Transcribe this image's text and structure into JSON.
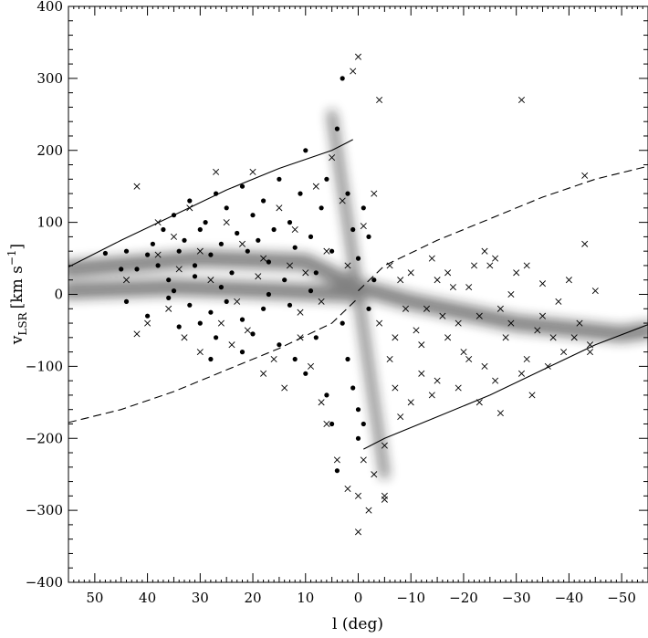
{
  "chart_data": {
    "type": "scatter",
    "title": "",
    "xlabel": "l (deg)",
    "ylabel": {
      "prefix": "v",
      "subscript": "LSR",
      "unit": "[km s",
      "sup": "−1",
      "close": "]"
    },
    "xlim": [
      55,
      -55
    ],
    "ylim": [
      -400,
      400
    ],
    "x_reversed": true,
    "grid": false,
    "legend": "none",
    "x_ticks": [
      50,
      40,
      30,
      20,
      10,
      0,
      -10,
      -20,
      -30,
      -40,
      -50
    ],
    "x_tick_labels": [
      "50",
      "40",
      "30",
      "20",
      "10",
      "0",
      "−10",
      "−20",
      "−30",
      "−40",
      "−50"
    ],
    "y_ticks": [
      -400,
      -300,
      -200,
      -100,
      0,
      100,
      200,
      300,
      400
    ],
    "y_tick_labels": [
      "−400",
      "−300",
      "−200",
      "−100",
      "0",
      "100",
      "200",
      "300",
      "400"
    ],
    "background_map": {
      "description": "greyscale HI/CO emission density",
      "bands": [
        {
          "x": [
            55,
            30,
            10,
            0,
            -10,
            -30,
            -50,
            -55
          ],
          "y": [
            35,
            50,
            45,
            10,
            -10,
            -40,
            -55,
            -50
          ]
        },
        {
          "x": [
            55,
            35,
            15,
            0
          ],
          "y": [
            5,
            10,
            5,
            0
          ]
        },
        {
          "x": [
            5,
            0,
            -5
          ],
          "y": [
            250,
            0,
            -250
          ]
        }
      ]
    },
    "series": [
      {
        "marker": "filled-circle",
        "points": [
          [
            48,
            57
          ],
          [
            45,
            35
          ],
          [
            44,
            60
          ],
          [
            42,
            35
          ],
          [
            40,
            55
          ],
          [
            39,
            70
          ],
          [
            38,
            40
          ],
          [
            37,
            90
          ],
          [
            36,
            20
          ],
          [
            35,
            110
          ],
          [
            34,
            60
          ],
          [
            33,
            75
          ],
          [
            32,
            130
          ],
          [
            31,
            40
          ],
          [
            30,
            90
          ],
          [
            29,
            100
          ],
          [
            28,
            55
          ],
          [
            27,
            140
          ],
          [
            26,
            70
          ],
          [
            25,
            120
          ],
          [
            24,
            30
          ],
          [
            23,
            85
          ],
          [
            22,
            150
          ],
          [
            21,
            60
          ],
          [
            20,
            110
          ],
          [
            19,
            75
          ],
          [
            18,
            130
          ],
          [
            17,
            45
          ],
          [
            16,
            90
          ],
          [
            15,
            160
          ],
          [
            14,
            20
          ],
          [
            13,
            100
          ],
          [
            12,
            65
          ],
          [
            11,
            140
          ],
          [
            10,
            200
          ],
          [
            9,
            80
          ],
          [
            8,
            30
          ],
          [
            7,
            120
          ],
          [
            6,
            160
          ],
          [
            5,
            60
          ],
          [
            4,
            230
          ],
          [
            3,
            300
          ],
          [
            2,
            140
          ],
          [
            1,
            90
          ],
          [
            0,
            50
          ],
          [
            -1,
            120
          ],
          [
            -2,
            80
          ],
          [
            -3,
            20
          ],
          [
            44,
            -10
          ],
          [
            40,
            -30
          ],
          [
            36,
            -5
          ],
          [
            34,
            -45
          ],
          [
            32,
            -15
          ],
          [
            30,
            -40
          ],
          [
            28,
            -25
          ],
          [
            27,
            -60
          ],
          [
            25,
            -10
          ],
          [
            22,
            -35
          ],
          [
            20,
            -55
          ],
          [
            18,
            -20
          ],
          [
            15,
            -70
          ],
          [
            12,
            -90
          ],
          [
            10,
            -110
          ],
          [
            8,
            -60
          ],
          [
            6,
            -140
          ],
          [
            5,
            -180
          ],
          [
            4,
            -245
          ],
          [
            3,
            -40
          ],
          [
            2,
            -90
          ],
          [
            1,
            -130
          ],
          [
            0,
            -160
          ],
          [
            0,
            -200
          ],
          [
            -1,
            -180
          ],
          [
            -2,
            -20
          ],
          [
            28,
            -90
          ],
          [
            22,
            -80
          ],
          [
            35,
            5
          ],
          [
            31,
            25
          ],
          [
            26,
            10
          ],
          [
            17,
            0
          ],
          [
            13,
            -15
          ],
          [
            9,
            5
          ]
        ]
      },
      {
        "marker": "cross",
        "points": [
          [
            42,
            150
          ],
          [
            38,
            100
          ],
          [
            35,
            80
          ],
          [
            32,
            120
          ],
          [
            30,
            60
          ],
          [
            27,
            170
          ],
          [
            25,
            100
          ],
          [
            22,
            70
          ],
          [
            20,
            170
          ],
          [
            18,
            50
          ],
          [
            15,
            120
          ],
          [
            12,
            90
          ],
          [
            10,
            30
          ],
          [
            8,
            150
          ],
          [
            6,
            60
          ],
          [
            5,
            190
          ],
          [
            3,
            130
          ],
          [
            2,
            40
          ],
          [
            1,
            310
          ],
          [
            0,
            330
          ],
          [
            -1,
            95
          ],
          [
            -3,
            140
          ],
          [
            -4,
            270
          ],
          [
            -5,
            -210
          ],
          [
            -6,
            40
          ],
          [
            -7,
            -60
          ],
          [
            -8,
            20
          ],
          [
            -10,
            30
          ],
          [
            -12,
            -70
          ],
          [
            -14,
            50
          ],
          [
            -16,
            -30
          ],
          [
            -18,
            10
          ],
          [
            -20,
            -80
          ],
          [
            -22,
            40
          ],
          [
            -24,
            -100
          ],
          [
            -25,
            40
          ],
          [
            -27,
            -20
          ],
          [
            -28,
            -60
          ],
          [
            -30,
            30
          ],
          [
            -31,
            270
          ],
          [
            -32,
            -90
          ],
          [
            -33,
            -140
          ],
          [
            -35,
            -30
          ],
          [
            -37,
            -60
          ],
          [
            -38,
            -10
          ],
          [
            -40,
            20
          ],
          [
            -42,
            -40
          ],
          [
            -43,
            70
          ],
          [
            -44,
            -80
          ],
          [
            -45,
            5
          ],
          [
            -43,
            165
          ],
          [
            40,
            -40
          ],
          [
            36,
            -20
          ],
          [
            33,
            -60
          ],
          [
            30,
            -80
          ],
          [
            26,
            -40
          ],
          [
            24,
            -70
          ],
          [
            21,
            -50
          ],
          [
            18,
            -110
          ],
          [
            16,
            -90
          ],
          [
            14,
            -130
          ],
          [
            11,
            -60
          ],
          [
            9,
            -100
          ],
          [
            7,
            -150
          ],
          [
            6,
            -180
          ],
          [
            4,
            -230
          ],
          [
            2,
            -270
          ],
          [
            0,
            -280
          ],
          [
            0,
            -330
          ],
          [
            -1,
            -230
          ],
          [
            -2,
            -300
          ],
          [
            -3,
            -250
          ],
          [
            -5,
            -280
          ],
          [
            -5,
            -285
          ],
          [
            -7,
            -130
          ],
          [
            -8,
            -170
          ],
          [
            -10,
            -150
          ],
          [
            -12,
            -110
          ],
          [
            -14,
            -140
          ],
          [
            -15,
            -120
          ],
          [
            -17,
            -60
          ],
          [
            -19,
            -130
          ],
          [
            -21,
            -90
          ],
          [
            -23,
            -150
          ],
          [
            -26,
            -120
          ],
          [
            -27,
            -165
          ],
          [
            -29,
            -40
          ],
          [
            -31,
            -110
          ],
          [
            -34,
            -50
          ],
          [
            -36,
            -100
          ],
          [
            -39,
            -80
          ],
          [
            -41,
            -60
          ],
          [
            -44,
            -70
          ],
          [
            44,
            20
          ],
          [
            42,
            -55
          ],
          [
            38,
            55
          ],
          [
            34,
            35
          ],
          [
            28,
            20
          ],
          [
            23,
            -10
          ],
          [
            19,
            25
          ],
          [
            13,
            40
          ],
          [
            11,
            -25
          ],
          [
            7,
            -10
          ],
          [
            -4,
            -40
          ],
          [
            -6,
            -90
          ],
          [
            -9,
            -20
          ],
          [
            -11,
            -50
          ],
          [
            -13,
            -20
          ],
          [
            -15,
            20
          ],
          [
            -17,
            30
          ],
          [
            -19,
            -40
          ],
          [
            -21,
            10
          ],
          [
            -23,
            -30
          ],
          [
            -24,
            60
          ],
          [
            -26,
            50
          ],
          [
            -29,
            0
          ],
          [
            -32,
            40
          ],
          [
            -35,
            15
          ]
        ]
      }
    ],
    "lines": [
      {
        "style": "solid",
        "x": [
          55,
          45,
          35,
          25,
          15,
          5,
          1
        ],
        "y": [
          38,
          75,
          110,
          145,
          175,
          200,
          215
        ]
      },
      {
        "style": "solid",
        "x": [
          -1,
          -5,
          -15,
          -25,
          -35,
          -45,
          -55
        ],
        "y": [
          -215,
          -200,
          -170,
          -140,
          -105,
          -70,
          -42
        ]
      },
      {
        "style": "dashed",
        "x": [
          55,
          45,
          35,
          25,
          15,
          5,
          0
        ],
        "y": [
          -178,
          -160,
          -135,
          -105,
          -75,
          -40,
          -5
        ]
      },
      {
        "style": "dashed",
        "x": [
          0,
          -5,
          -15,
          -25,
          -35,
          -45,
          -55
        ],
        "y": [
          5,
          40,
          75,
          105,
          135,
          160,
          178
        ]
      }
    ]
  }
}
